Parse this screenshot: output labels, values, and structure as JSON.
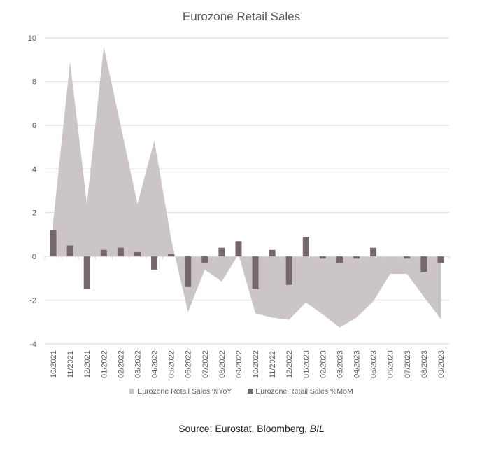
{
  "chart_data": {
    "type": "area+bar",
    "title": "Eurozone Retail Sales",
    "xlabel": "",
    "ylabel": "",
    "ylim": [
      -4,
      10
    ],
    "yticks": [
      10,
      8,
      6,
      4,
      2,
      0,
      -2,
      -4
    ],
    "grid": true,
    "legend_position": "bottom",
    "categories": [
      "10/2021",
      "11/2021",
      "12/2021",
      "01/2022",
      "02/2022",
      "03/2022",
      "04/2022",
      "05/2022",
      "06/2022",
      "07/2022",
      "08/2022",
      "09/2022",
      "10/2022",
      "11/2022",
      "12/2022",
      "01/2023",
      "02/2023",
      "03/2023",
      "04/2023",
      "05/2023",
      "06/2023",
      "07/2023",
      "08/2023",
      "09/2023"
    ],
    "series": [
      {
        "name": "Eurozone Retail Sales %YoY",
        "type": "area",
        "color": "#cbc5c8",
        "values": [
          1.6,
          8.9,
          2.4,
          9.6,
          6.0,
          2.4,
          5.3,
          0.8,
          -2.55,
          -0.6,
          -1.15,
          0.1,
          -2.6,
          -2.8,
          -2.9,
          -2.1,
          -2.65,
          -3.25,
          -2.8,
          -2.05,
          -0.8,
          -0.8,
          -1.85,
          -2.85
        ]
      },
      {
        "name": "Eurozone Retail Sales %MoM",
        "type": "bar",
        "color": "#76666f",
        "values": [
          1.2,
          0.5,
          -1.5,
          0.3,
          0.4,
          0.2,
          -0.6,
          0.1,
          -1.4,
          -0.3,
          0.4,
          0.7,
          -1.5,
          0.3,
          -1.3,
          0.9,
          -0.1,
          -0.3,
          -0.1,
          0.4,
          0.0,
          -0.1,
          -0.7,
          -0.3
        ]
      }
    ]
  },
  "source": {
    "prefix": "Source: Eurostat, Bloomberg, ",
    "italic": "BIL"
  }
}
